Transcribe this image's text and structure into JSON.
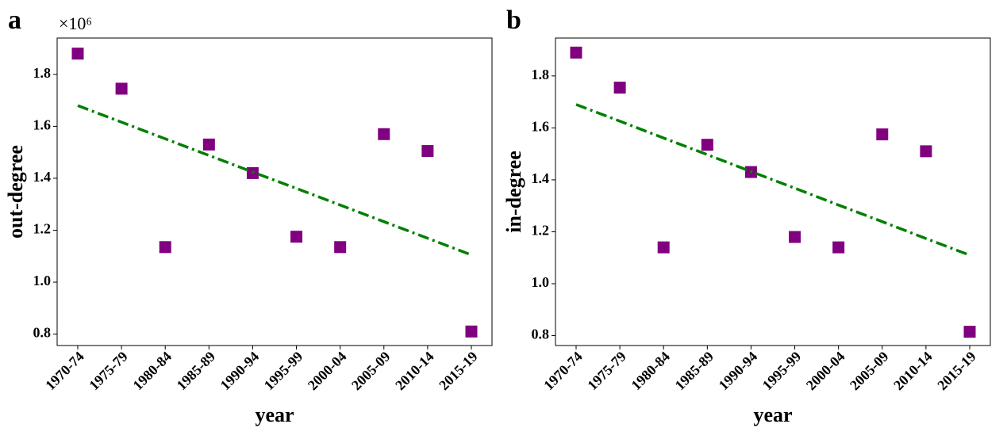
{
  "chart_data": [
    {
      "type": "scatter",
      "panel_label": "a",
      "offset_text": "×10⁶",
      "xlabel": "year",
      "ylabel": "out-degree",
      "categories": [
        "1970-74",
        "1975-79",
        "1980-84",
        "1985-89",
        "1990-94",
        "1995-99",
        "2000-04",
        "2005-09",
        "2010-14",
        "2015-19"
      ],
      "series": [
        {
          "kind": "scatter",
          "marker": "square",
          "color": "#800080",
          "values": [
            1.88,
            1.745,
            1.135,
            1.53,
            1.42,
            1.175,
            1.135,
            1.57,
            1.505,
            0.81
          ]
        },
        {
          "kind": "line",
          "linestyle": "dashdot",
          "color": "#008000",
          "values": [
            1.68,
            1.616,
            1.552,
            1.488,
            1.424,
            1.361,
            1.297,
            1.233,
            1.169,
            1.105
          ]
        }
      ],
      "ylim": [
        0.756,
        1.94
      ],
      "yticks": [
        0.8,
        {
          "value": 1,
          "label": "1.0"
        },
        1.2,
        1.4,
        1.6,
        1.8
      ]
    },
    {
      "type": "scatter",
      "panel_label": "b",
      "xlabel": "year",
      "ylabel": "in-degree",
      "categories": [
        "1970-74",
        "1975-79",
        "1980-84",
        "1985-89",
        "1990-94",
        "1995-99",
        "2000-04",
        "2005-09",
        "2010-14",
        "2015-19"
      ],
      "series": [
        {
          "kind": "scatter",
          "marker": "square",
          "color": "#800080",
          "values": [
            1.89,
            1.755,
            1.14,
            1.535,
            1.43,
            1.18,
            1.14,
            1.575,
            1.51,
            0.815
          ]
        },
        {
          "kind": "line",
          "linestyle": "dashdot",
          "color": "#008000",
          "values": [
            1.69,
            1.626,
            1.561,
            1.497,
            1.432,
            1.368,
            1.303,
            1.239,
            1.174,
            1.11
          ]
        }
      ],
      "ylim": [
        0.762,
        1.946
      ],
      "yticks": [
        0.8,
        {
          "value": 1,
          "label": "1.0"
        },
        1.2,
        1.4,
        1.6,
        1.8
      ]
    }
  ]
}
